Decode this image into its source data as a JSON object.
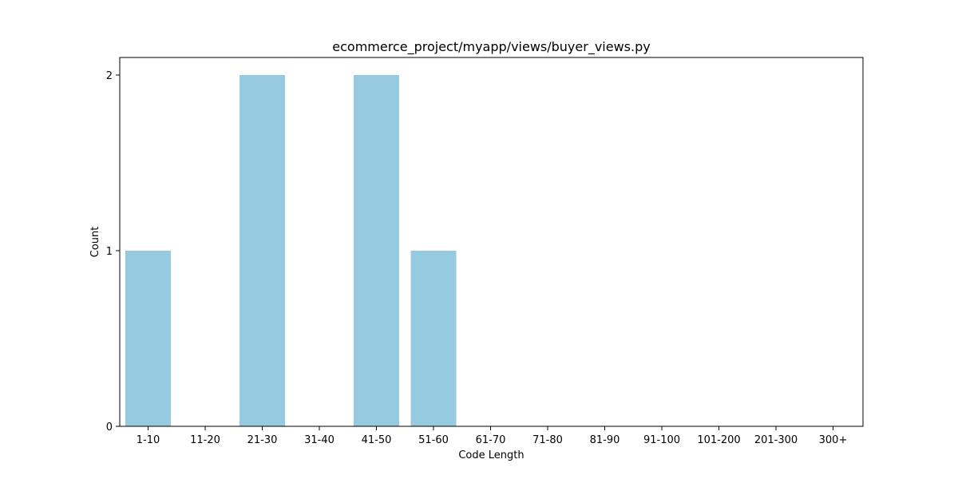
{
  "chart_data": {
    "type": "bar",
    "title": "ecommerce_project/myapp/views/buyer_views.py",
    "xlabel": "Code Length",
    "ylabel": "Count",
    "categories": [
      "1-10",
      "11-20",
      "21-30",
      "31-40",
      "41-50",
      "51-60",
      "61-70",
      "71-80",
      "81-90",
      "91-100",
      "101-200",
      "201-300",
      "300+"
    ],
    "values": [
      1,
      0,
      2,
      0,
      2,
      1,
      0,
      0,
      0,
      0,
      0,
      0,
      0
    ],
    "yticks": [
      "0",
      "1",
      "2"
    ],
    "ylim": [
      0,
      2.1
    ],
    "bar_color": "#96cadf",
    "grid": false,
    "legend": "none"
  }
}
